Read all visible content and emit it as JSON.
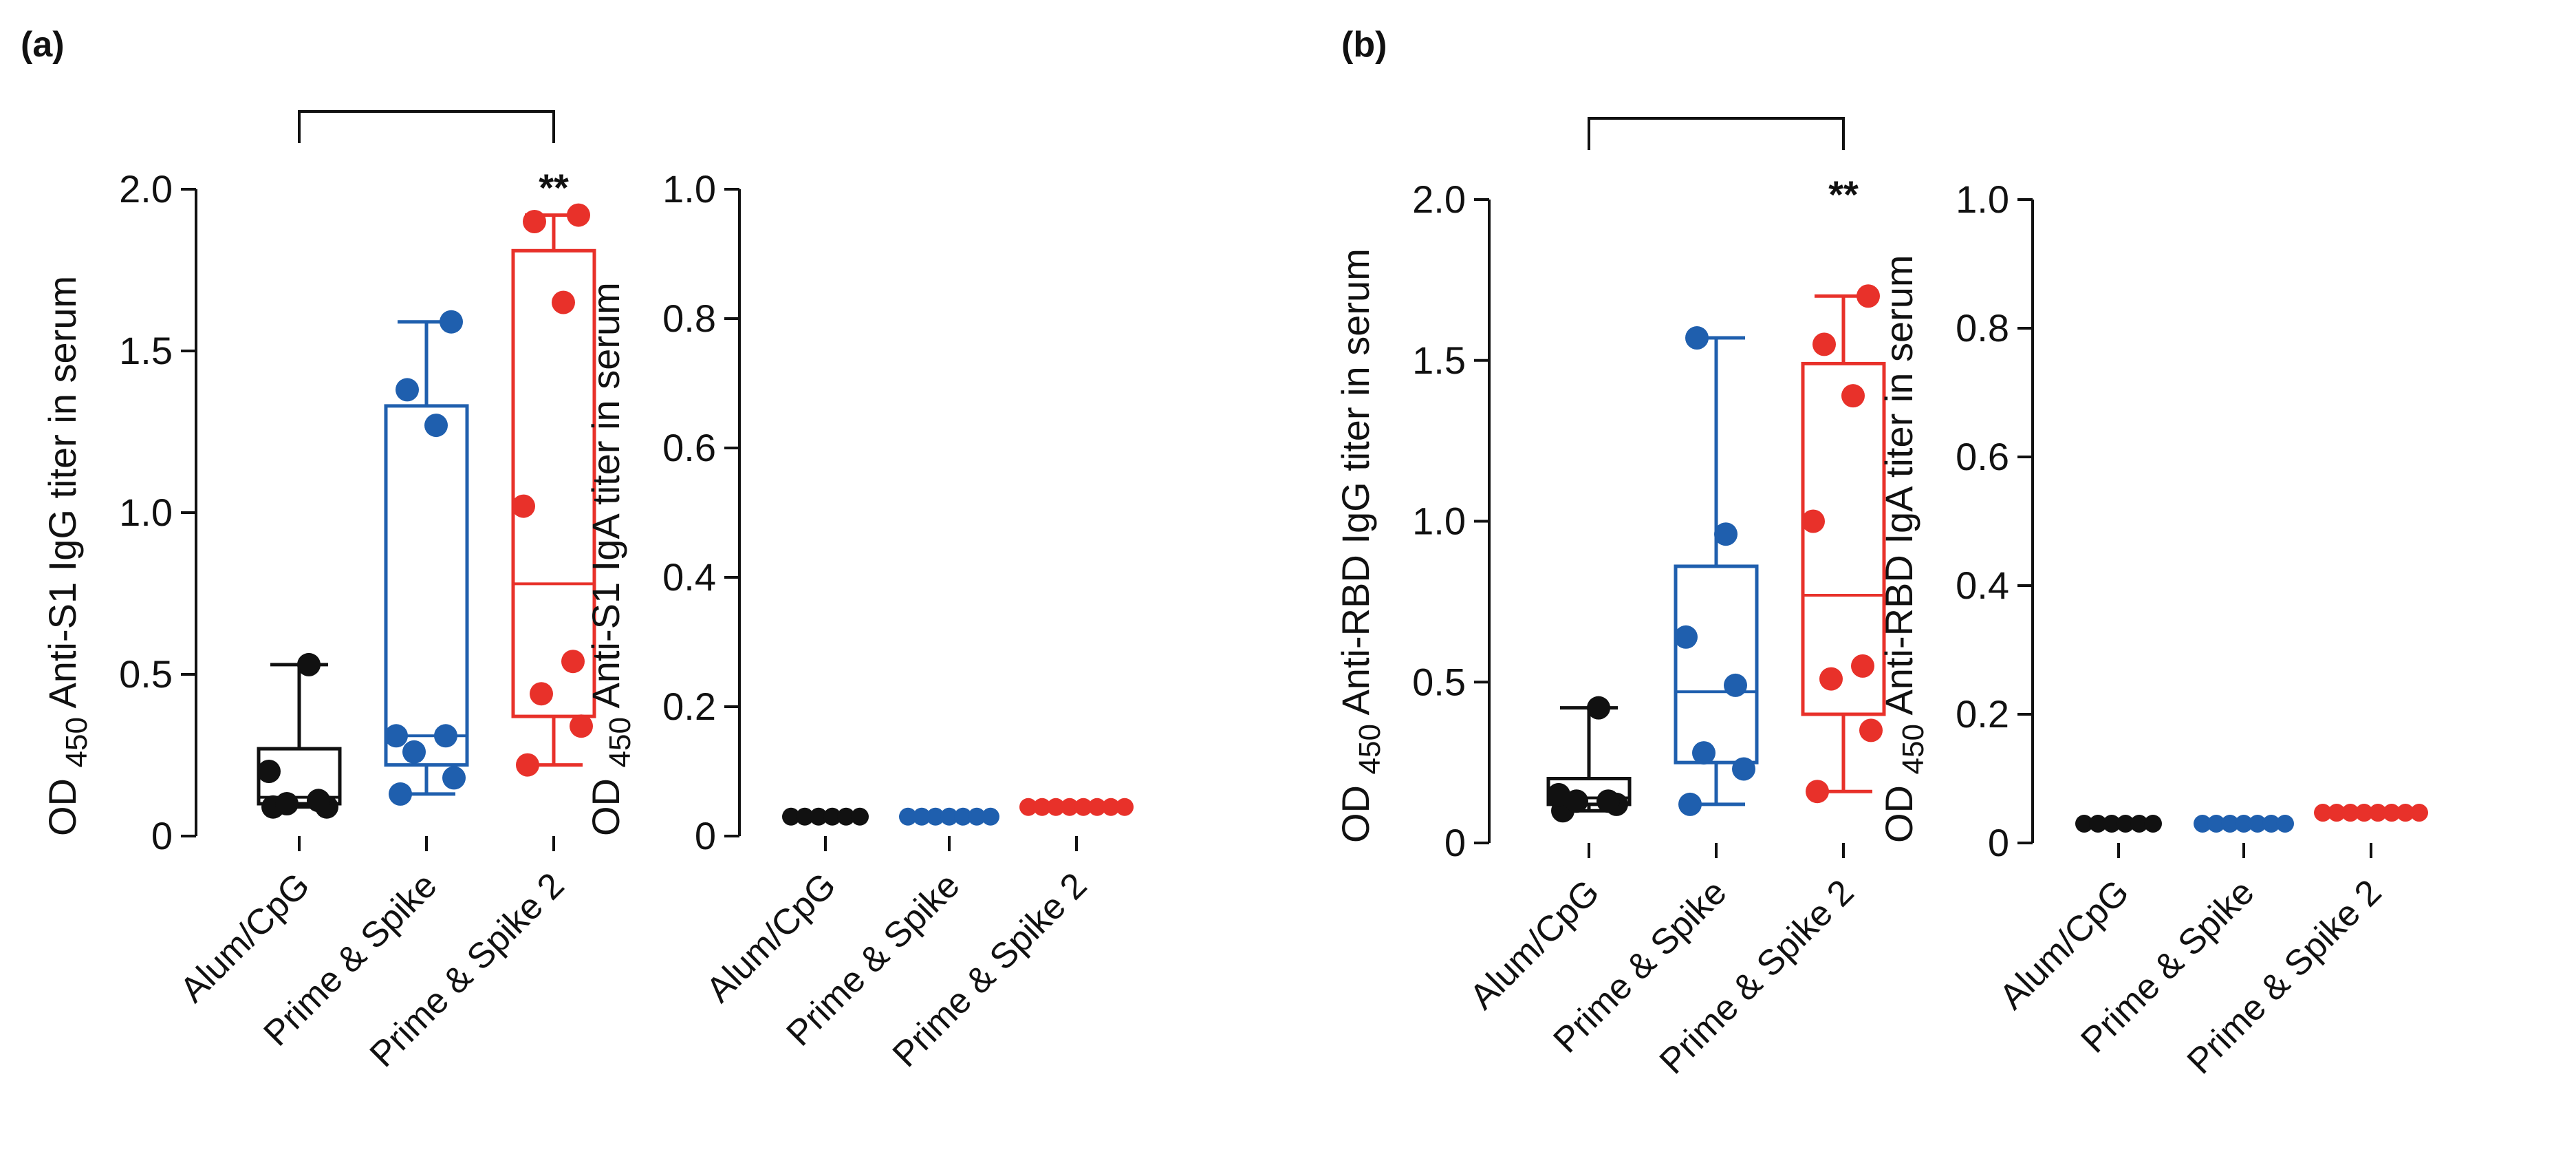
{
  "panels": [
    {
      "label": "(a)"
    },
    {
      "label": "(b)"
    }
  ],
  "colors": {
    "Alum/CpG": "#111111",
    "Prime & Spike": "#1f5fae",
    "Prime & Spike 2": "#e8312a"
  },
  "chart_data": [
    {
      "type": "box",
      "panel": "(a)",
      "title": "",
      "xlabel": "",
      "ylabel_prefix": "OD",
      "ylabel_sub": "450",
      "ylabel_text": "Anti-S1 IgG titer in serum",
      "ylim": [
        0,
        2.0
      ],
      "yticks": [
        0,
        0.5,
        1.0,
        1.5,
        2.0
      ],
      "ytick_labels": [
        "0",
        "0.5",
        "1.0",
        "1.5",
        "2.0"
      ],
      "categories": [
        "Alum/CpG",
        "Prime & Spike",
        "Prime & Spike 2"
      ],
      "significance": {
        "from": "Alum/CpG",
        "to": "Prime & Spike 2",
        "label": "**"
      },
      "series": [
        {
          "name": "Alum/CpG",
          "whisker_low": 0.09,
          "q1": 0.1,
          "median": 0.12,
          "q3": 0.27,
          "whisker_high": 0.53,
          "points": [
            0.09,
            0.09,
            0.1,
            0.11,
            0.2,
            0.53
          ]
        },
        {
          "name": "Prime & Spike",
          "whisker_low": 0.13,
          "q1": 0.22,
          "median": 0.31,
          "q3": 1.33,
          "whisker_high": 1.59,
          "points": [
            0.13,
            0.18,
            0.26,
            0.31,
            0.31,
            1.27,
            1.38,
            1.59
          ]
        },
        {
          "name": "Prime & Spike 2",
          "whisker_low": 0.22,
          "q1": 0.37,
          "median": 0.78,
          "q3": 1.81,
          "whisker_high": 1.92,
          "points": [
            0.22,
            0.34,
            0.44,
            0.54,
            1.02,
            1.65,
            1.9,
            1.92
          ]
        }
      ]
    },
    {
      "type": "scatter",
      "panel": "(a)",
      "title": "",
      "xlabel": "",
      "ylabel_prefix": "OD",
      "ylabel_sub": "450",
      "ylabel_text": "Anti-S1 IgA titer in serum",
      "ylim": [
        0,
        1.0
      ],
      "yticks": [
        0,
        0.2,
        0.4,
        0.6,
        0.8,
        1.0
      ],
      "ytick_labels": [
        "0",
        "0.2",
        "0.4",
        "0.6",
        "0.8",
        "1.0"
      ],
      "categories": [
        "Alum/CpG",
        "Prime & Spike",
        "Prime & Spike 2"
      ],
      "series": [
        {
          "name": "Alum/CpG",
          "points": [
            0.03,
            0.03,
            0.03,
            0.03,
            0.03,
            0.03
          ]
        },
        {
          "name": "Prime & Spike",
          "points": [
            0.03,
            0.03,
            0.03,
            0.03,
            0.03,
            0.03,
            0.03
          ]
        },
        {
          "name": "Prime & Spike 2",
          "points": [
            0.045,
            0.045,
            0.045,
            0.045,
            0.045,
            0.045,
            0.045,
            0.045
          ]
        }
      ]
    },
    {
      "type": "box",
      "panel": "(b)",
      "title": "",
      "xlabel": "",
      "ylabel_prefix": "OD",
      "ylabel_sub": "450",
      "ylabel_text": "Anti-RBD IgG titer in serum",
      "ylim": [
        0,
        2.0
      ],
      "yticks": [
        0,
        0.5,
        1.0,
        1.5,
        2.0
      ],
      "ytick_labels": [
        "0",
        "0.5",
        "1.0",
        "1.5",
        "2.0"
      ],
      "categories": [
        "Alum/CpG",
        "Prime & Spike",
        "Prime & Spike 2"
      ],
      "significance": {
        "from": "Alum/CpG",
        "to": "Prime & Spike 2",
        "label": "**"
      },
      "series": [
        {
          "name": "Alum/CpG",
          "whisker_low": 0.1,
          "q1": 0.12,
          "median": 0.14,
          "q3": 0.2,
          "whisker_high": 0.42,
          "points": [
            0.1,
            0.12,
            0.13,
            0.13,
            0.15,
            0.42
          ]
        },
        {
          "name": "Prime & Spike",
          "whisker_low": 0.12,
          "q1": 0.25,
          "median": 0.47,
          "q3": 0.86,
          "whisker_high": 1.57,
          "points": [
            0.12,
            0.23,
            0.28,
            0.49,
            0.64,
            0.96,
            1.57
          ]
        },
        {
          "name": "Prime & Spike 2",
          "whisker_low": 0.16,
          "q1": 0.4,
          "median": 0.77,
          "q3": 1.49,
          "whisker_high": 1.7,
          "points": [
            0.16,
            0.35,
            0.51,
            0.55,
            1.0,
            1.39,
            1.55,
            1.7
          ]
        }
      ]
    },
    {
      "type": "scatter",
      "panel": "(b)",
      "title": "",
      "xlabel": "",
      "ylabel_prefix": "OD",
      "ylabel_sub": "450",
      "ylabel_text": "Anti-RBD IgA titer in serum",
      "ylim": [
        0,
        1.0
      ],
      "yticks": [
        0,
        0.2,
        0.4,
        0.6,
        0.8,
        1.0
      ],
      "ytick_labels": [
        "0",
        "0.2",
        "0.4",
        "0.6",
        "0.8",
        "1.0"
      ],
      "categories": [
        "Alum/CpG",
        "Prime & Spike",
        "Prime & Spike 2"
      ],
      "series": [
        {
          "name": "Alum/CpG",
          "points": [
            0.03,
            0.03,
            0.03,
            0.03,
            0.03,
            0.03
          ]
        },
        {
          "name": "Prime & Spike",
          "points": [
            0.03,
            0.03,
            0.03,
            0.03,
            0.03,
            0.03,
            0.03
          ]
        },
        {
          "name": "Prime & Spike 2",
          "points": [
            0.047,
            0.047,
            0.047,
            0.047,
            0.047,
            0.047,
            0.047,
            0.047
          ]
        }
      ]
    }
  ]
}
